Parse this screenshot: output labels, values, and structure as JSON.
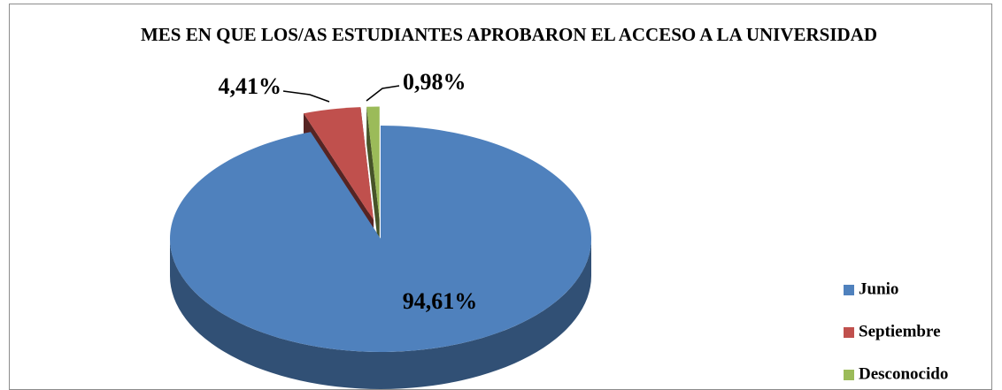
{
  "chart_data": {
    "type": "pie3d",
    "title": "MES EN QUE LOS/AS ESTUDIANTES APROBARON EL ACCESO A LA UNIVERSIDAD",
    "categories": [
      "Junio",
      "Septiembre",
      "Desconocido"
    ],
    "values": [
      94.61,
      4.41,
      0.98
    ],
    "value_labels": [
      "94,61%",
      "4,41%",
      "0,98%"
    ],
    "colors": [
      "#4f81bd",
      "#c0504d",
      "#9bbb59"
    ],
    "legend": "right"
  }
}
